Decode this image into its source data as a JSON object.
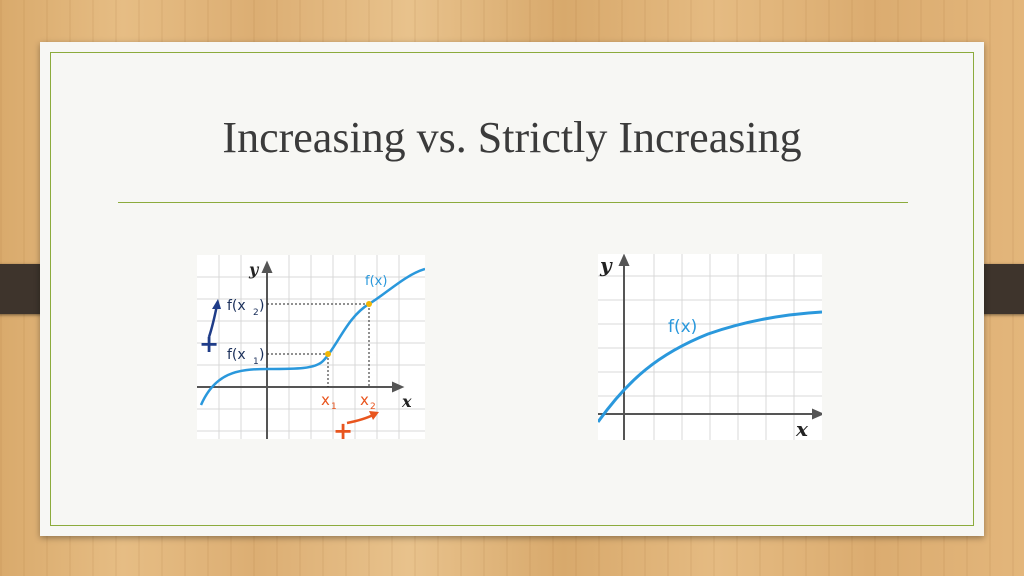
{
  "slide": {
    "title": "Increasing vs. Strictly Increasing"
  },
  "left_graph": {
    "y_axis_label": "y",
    "x_axis_label": "x",
    "curve_label": "f(x)",
    "fx2_label": "f(x",
    "fx2_sub": "2",
    "fx2_close": ")",
    "fx1_label": "f(x",
    "fx1_sub": "1",
    "fx1_close": ")",
    "x1_label": "x",
    "x1_sub": "1",
    "x2_label": "x",
    "x2_sub": "2",
    "plus_vertical": "+",
    "plus_horizontal": "+",
    "colors": {
      "curve": "#2a98dc",
      "points": "#f2b705",
      "vertical_arrow": "#1f3c88",
      "horizontal_arrow": "#e8551e"
    }
  },
  "right_graph": {
    "y_axis_label": "y",
    "x_axis_label": "x",
    "curve_label": "f(x)",
    "colors": {
      "curve": "#2a98dc"
    }
  }
}
